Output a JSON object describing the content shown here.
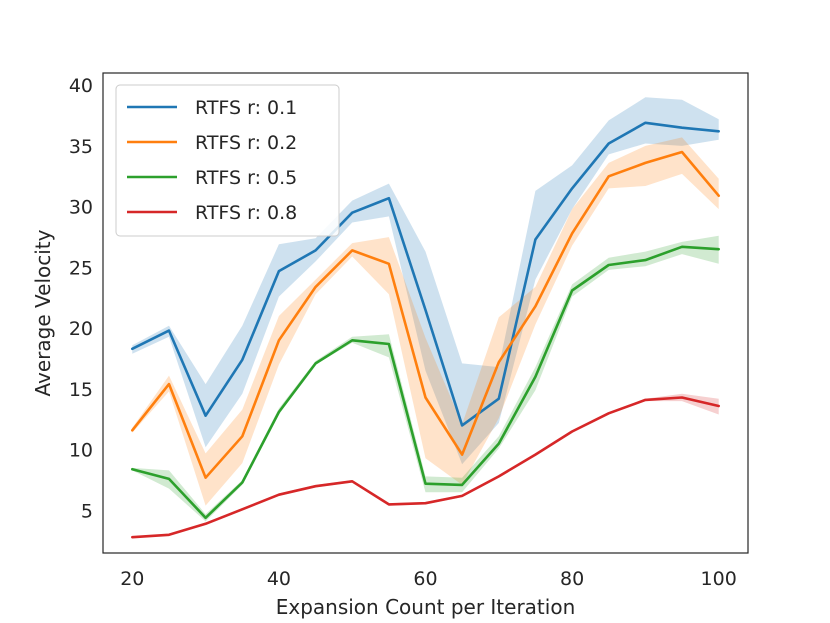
{
  "chart_data": {
    "type": "line",
    "title": "",
    "xlabel": "Expansion Count per Iteration",
    "ylabel": "Average Velocity",
    "xlim": [
      16,
      104
    ],
    "ylim": [
      1.5,
      41
    ],
    "xticks": [
      20,
      40,
      60,
      80,
      100
    ],
    "yticks": [
      5,
      10,
      15,
      20,
      25,
      30,
      35,
      40
    ],
    "grid": false,
    "legend_position": "top-left",
    "x": [
      20,
      25,
      30,
      35,
      40,
      45,
      50,
      55,
      60,
      65,
      70,
      75,
      80,
      85,
      90,
      95,
      100
    ],
    "series": [
      {
        "name": "RTFS r: 0.1",
        "color": "#1f77b4",
        "values": [
          18.3,
          19.8,
          12.8,
          17.4,
          24.7,
          26.4,
          29.5,
          30.7,
          21.5,
          12.0,
          14.2,
          27.3,
          31.5,
          35.2,
          36.9,
          36.5,
          36.2
        ],
        "lower": [
          17.9,
          19.3,
          10.2,
          14.6,
          22.6,
          25.5,
          28.7,
          29.2,
          16.5,
          8.8,
          12.2,
          24.0,
          29.8,
          34.3,
          35.2,
          35.0,
          35.5
        ],
        "upper": [
          18.6,
          20.2,
          15.4,
          20.2,
          26.9,
          27.4,
          30.5,
          31.9,
          26.3,
          17.1,
          16.8,
          31.3,
          33.4,
          37.1,
          39.0,
          38.8,
          37.2
        ]
      },
      {
        "name": "RTFS r: 0.2",
        "color": "#ff7f0e",
        "values": [
          11.6,
          15.4,
          7.7,
          11.1,
          19.0,
          23.4,
          26.4,
          25.3,
          14.3,
          9.6,
          17.2,
          21.8,
          27.8,
          32.5,
          33.6,
          34.5,
          30.9
        ],
        "lower": [
          11.4,
          14.8,
          5.4,
          8.9,
          17.0,
          22.8,
          25.9,
          22.8,
          9.3,
          7.1,
          12.6,
          20.3,
          26.8,
          31.5,
          31.7,
          32.7,
          29.8
        ],
        "upper": [
          11.8,
          16.1,
          9.7,
          13.3,
          21.0,
          24.0,
          27.0,
          27.5,
          19.2,
          12.1,
          20.9,
          23.4,
          29.8,
          33.6,
          35.0,
          35.7,
          32.3
        ]
      },
      {
        "name": "RTFS r: 0.5",
        "color": "#2ca02c",
        "values": [
          8.4,
          7.6,
          4.4,
          7.3,
          13.1,
          17.1,
          19.0,
          18.7,
          7.2,
          7.1,
          10.5,
          16.0,
          23.1,
          25.2,
          25.6,
          26.7,
          26.5
        ],
        "lower": [
          8.3,
          6.8,
          4.1,
          7.1,
          12.9,
          17.0,
          18.8,
          17.6,
          6.5,
          6.5,
          10.1,
          14.9,
          22.6,
          24.8,
          25.1,
          26.1,
          25.3
        ],
        "upper": [
          8.5,
          8.3,
          4.7,
          7.5,
          13.4,
          17.3,
          19.3,
          19.5,
          7.8,
          7.7,
          11.1,
          16.8,
          23.6,
          25.8,
          26.3,
          27.1,
          27.6
        ]
      },
      {
        "name": "RTFS r: 0.8",
        "color": "#d62728",
        "values": [
          2.8,
          3.0,
          3.9,
          5.1,
          6.3,
          7.0,
          7.4,
          5.5,
          5.6,
          6.2,
          7.8,
          9.6,
          11.5,
          13.0,
          14.1,
          14.3,
          13.6
        ],
        "lower": [
          2.8,
          3.0,
          3.8,
          5.0,
          6.2,
          6.9,
          7.3,
          5.4,
          5.5,
          6.1,
          7.7,
          9.5,
          11.4,
          12.9,
          14.0,
          14.0,
          12.9
        ],
        "upper": [
          2.8,
          3.0,
          4.0,
          5.2,
          6.4,
          7.1,
          7.5,
          5.6,
          5.7,
          6.3,
          7.9,
          9.7,
          11.6,
          13.1,
          14.2,
          14.6,
          14.2
        ]
      }
    ]
  }
}
